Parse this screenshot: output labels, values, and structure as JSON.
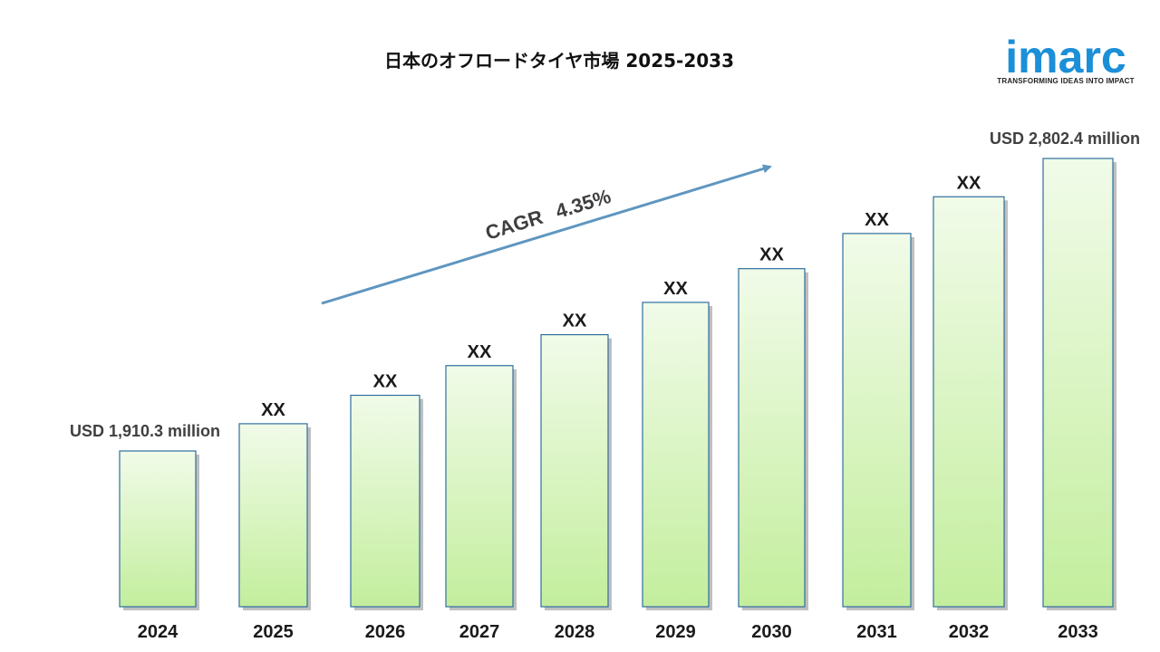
{
  "title": "日本のオフロードタイヤ市場 2025-2033",
  "logo": {
    "name": "imarc",
    "tagline": "TRANSFORMING IDEAS INTO IMPACT",
    "color": "#1b8fd8"
  },
  "colors": {
    "bar_top": "#f1fbe9",
    "bar_bottom": "#c3ee9d",
    "bar_border": "#2f6f9f",
    "arrow": "#5f96c0"
  },
  "cagr": {
    "label": "CAGR",
    "value": "4.35%"
  },
  "chart_data": {
    "type": "bar",
    "categories": [
      "2024",
      "2025",
      "2026",
      "2027",
      "2028",
      "2029",
      "2030",
      "2031",
      "2032",
      "2033"
    ],
    "values": [
      1910.3,
      1993.4,
      2080.1,
      2170.6,
      2265.0,
      2363.5,
      2466.3,
      2573.6,
      2685.6,
      2802.4
    ],
    "value_labels": [
      "USD 1,910.3 million",
      "XX",
      "XX",
      "XX",
      "XX",
      "XX",
      "XX",
      "XX",
      "XX",
      "USD 2,802.4 million"
    ],
    "title": "日本のオフロードタイヤ市場 2025-2033",
    "unit": "USD million",
    "grid": false,
    "legend": "none"
  }
}
